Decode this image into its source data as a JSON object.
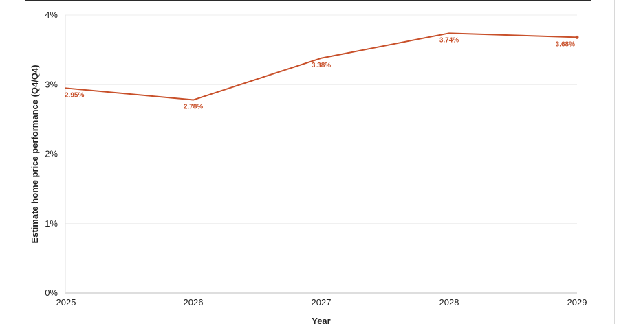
{
  "chart_data": {
    "type": "line",
    "title": "",
    "xlabel": "Year",
    "ylabel": "Estimate home price performance (Q4/Q4)",
    "categories": [
      "2025",
      "2026",
      "2027",
      "2028",
      "2029"
    ],
    "series": [
      {
        "values": [
          2.95,
          2.78,
          3.38,
          3.74,
          3.68
        ],
        "data_labels": [
          "2.95%",
          "2.78%",
          "3.38%",
          "3.74%",
          "3.68%"
        ],
        "color": "#c8502a"
      }
    ],
    "ylim": [
      0,
      4
    ],
    "y_ticks": [
      0,
      1,
      2,
      3,
      4
    ],
    "y_tick_labels": [
      "0%",
      "1%",
      "2%",
      "3%",
      "4%"
    ],
    "grid": true,
    "legend": "none"
  }
}
